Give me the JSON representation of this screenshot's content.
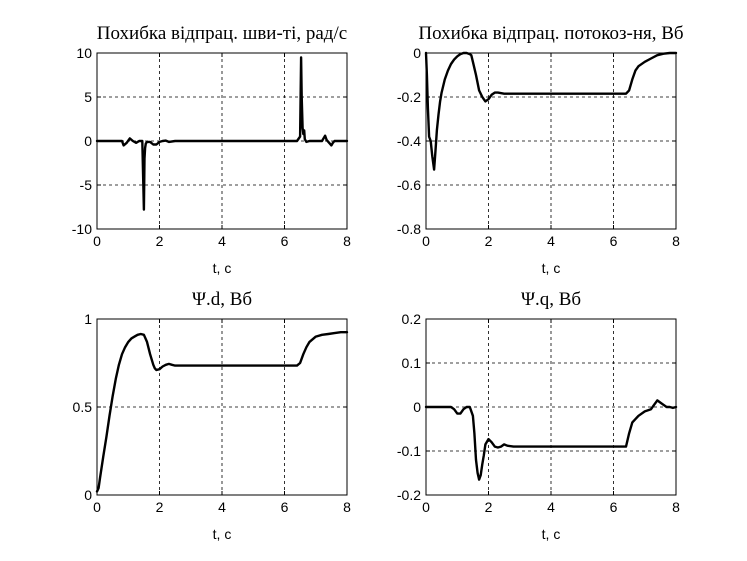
{
  "chart_data": [
    {
      "type": "line",
      "title": "Похибка відпрац. шви-ті, рад/с",
      "xlabel": "t, c",
      "ylabel": "",
      "xlim": [
        0,
        8
      ],
      "ylim": [
        -10,
        10
      ],
      "xticks": [
        "0",
        "2",
        "4",
        "6",
        "8"
      ],
      "yticks": [
        "-10",
        "-5",
        "0",
        "5",
        "10"
      ],
      "grid": true,
      "x": [
        0,
        0.8,
        0.85,
        0.95,
        1.05,
        1.15,
        1.25,
        1.35,
        1.45,
        1.5,
        1.52,
        1.54,
        1.56,
        1.6,
        1.7,
        1.8,
        1.9,
        2.0,
        2.1,
        2.2,
        2.3,
        2.5,
        3,
        4,
        5,
        6,
        6.4,
        6.5,
        6.53,
        6.55,
        6.58,
        6.6,
        6.63,
        6.65,
        6.7,
        6.8,
        7.0,
        7.2,
        7.3,
        7.35,
        7.45,
        7.5,
        7.55,
        7.6,
        7.8,
        8
      ],
      "y": [
        0,
        0,
        -0.5,
        -0.2,
        0.3,
        0,
        -0.2,
        0,
        0,
        -7.8,
        -2.0,
        -0.8,
        -0.3,
        -0.1,
        -0.1,
        -0.4,
        -0.4,
        -0.1,
        0,
        0.05,
        -0.1,
        0,
        0,
        0,
        0,
        0,
        0,
        0.5,
        9.5,
        5.0,
        1.5,
        0.8,
        1.2,
        0.2,
        -0.1,
        0,
        0,
        0,
        0.6,
        0.1,
        -0.3,
        -0.5,
        -0.2,
        0,
        0,
        0
      ]
    },
    {
      "type": "line",
      "title": "Похибка відпрац. потокоз-ня, Вб",
      "xlabel": "t, c",
      "ylabel": "",
      "xlim": [
        0,
        8
      ],
      "ylim": [
        -0.8,
        0
      ],
      "xticks": [
        "0",
        "2",
        "4",
        "6",
        "8"
      ],
      "yticks": [
        "-0.8",
        "-0.6",
        "-0.4",
        "-0.2",
        "0"
      ],
      "grid": true,
      "x": [
        0,
        0.03,
        0.06,
        0.1,
        0.15,
        0.2,
        0.23,
        0.26,
        0.3,
        0.35,
        0.4,
        0.45,
        0.5,
        0.6,
        0.7,
        0.8,
        0.9,
        1.0,
        1.1,
        1.2,
        1.3,
        1.4,
        1.45,
        1.5,
        1.6,
        1.7,
        1.8,
        1.85,
        1.9,
        2.0,
        2.1,
        2.2,
        2.3,
        2.5,
        3,
        4,
        5,
        6,
        6.4,
        6.5,
        6.6,
        6.7,
        6.8,
        7.0,
        7.2,
        7.4,
        7.6,
        7.8,
        8
      ],
      "y": [
        0,
        -0.1,
        -0.25,
        -0.38,
        -0.4,
        -0.47,
        -0.5,
        -0.53,
        -0.45,
        -0.35,
        -0.28,
        -0.22,
        -0.18,
        -0.12,
        -0.08,
        -0.05,
        -0.03,
        -0.015,
        -0.005,
        0,
        0,
        -0.005,
        -0.01,
        -0.04,
        -0.1,
        -0.17,
        -0.2,
        -0.21,
        -0.22,
        -0.21,
        -0.19,
        -0.18,
        -0.18,
        -0.185,
        -0.185,
        -0.185,
        -0.185,
        -0.185,
        -0.185,
        -0.17,
        -0.12,
        -0.08,
        -0.06,
        -0.04,
        -0.025,
        -0.01,
        -0.003,
        0,
        0
      ]
    },
    {
      "type": "line",
      "title": "Ψ.d, Вб",
      "xlabel": "t, c",
      "ylabel": "",
      "xlim": [
        0,
        8
      ],
      "ylim": [
        0,
        1
      ],
      "xticks": [
        "0",
        "2",
        "4",
        "6",
        "8"
      ],
      "yticks": [
        "0",
        "0.5",
        "1"
      ],
      "grid": true,
      "x": [
        0,
        0.05,
        0.1,
        0.2,
        0.3,
        0.4,
        0.5,
        0.6,
        0.7,
        0.8,
        0.9,
        1.0,
        1.1,
        1.2,
        1.3,
        1.4,
        1.5,
        1.6,
        1.7,
        1.8,
        1.85,
        1.9,
        2.0,
        2.1,
        2.2,
        2.3,
        2.4,
        2.5,
        3,
        4,
        5,
        6,
        6.4,
        6.5,
        6.6,
        6.7,
        6.8,
        7.0,
        7.2,
        7.4,
        7.6,
        7.8,
        8
      ],
      "y": [
        0.02,
        0.04,
        0.1,
        0.22,
        0.33,
        0.45,
        0.56,
        0.66,
        0.74,
        0.8,
        0.84,
        0.87,
        0.89,
        0.9,
        0.91,
        0.915,
        0.91,
        0.87,
        0.8,
        0.74,
        0.72,
        0.71,
        0.715,
        0.73,
        0.74,
        0.745,
        0.74,
        0.735,
        0.735,
        0.735,
        0.735,
        0.735,
        0.735,
        0.75,
        0.8,
        0.84,
        0.87,
        0.9,
        0.91,
        0.915,
        0.92,
        0.925,
        0.925
      ]
    },
    {
      "type": "line",
      "title": "Ψ.q, Вб",
      "xlabel": "t, c",
      "ylabel": "",
      "xlim": [
        0,
        8
      ],
      "ylim": [
        -0.2,
        0.2
      ],
      "xticks": [
        "0",
        "2",
        "4",
        "6",
        "8"
      ],
      "yticks": [
        "-0.2",
        "-0.1",
        "0",
        "0.1",
        "0.2"
      ],
      "grid": true,
      "x": [
        0,
        0.8,
        0.9,
        1.0,
        1.1,
        1.2,
        1.3,
        1.4,
        1.5,
        1.55,
        1.6,
        1.65,
        1.7,
        1.75,
        1.8,
        1.85,
        1.9,
        2.0,
        2.1,
        2.2,
        2.3,
        2.4,
        2.5,
        2.6,
        2.8,
        3,
        4,
        5,
        6,
        6.4,
        6.5,
        6.6,
        6.8,
        7.0,
        7.2,
        7.3,
        7.4,
        7.5,
        7.6,
        7.7,
        7.8,
        7.9,
        8
      ],
      "y": [
        0,
        0,
        -0.005,
        -0.015,
        -0.015,
        -0.005,
        0,
        0,
        -0.02,
        -0.06,
        -0.12,
        -0.15,
        -0.165,
        -0.155,
        -0.13,
        -0.11,
        -0.085,
        -0.073,
        -0.08,
        -0.09,
        -0.092,
        -0.09,
        -0.085,
        -0.088,
        -0.09,
        -0.09,
        -0.09,
        -0.09,
        -0.09,
        -0.09,
        -0.06,
        -0.035,
        -0.02,
        -0.01,
        -0.005,
        0.005,
        0.015,
        0.01,
        0.005,
        0,
        0,
        -0.002,
        0
      ]
    }
  ]
}
